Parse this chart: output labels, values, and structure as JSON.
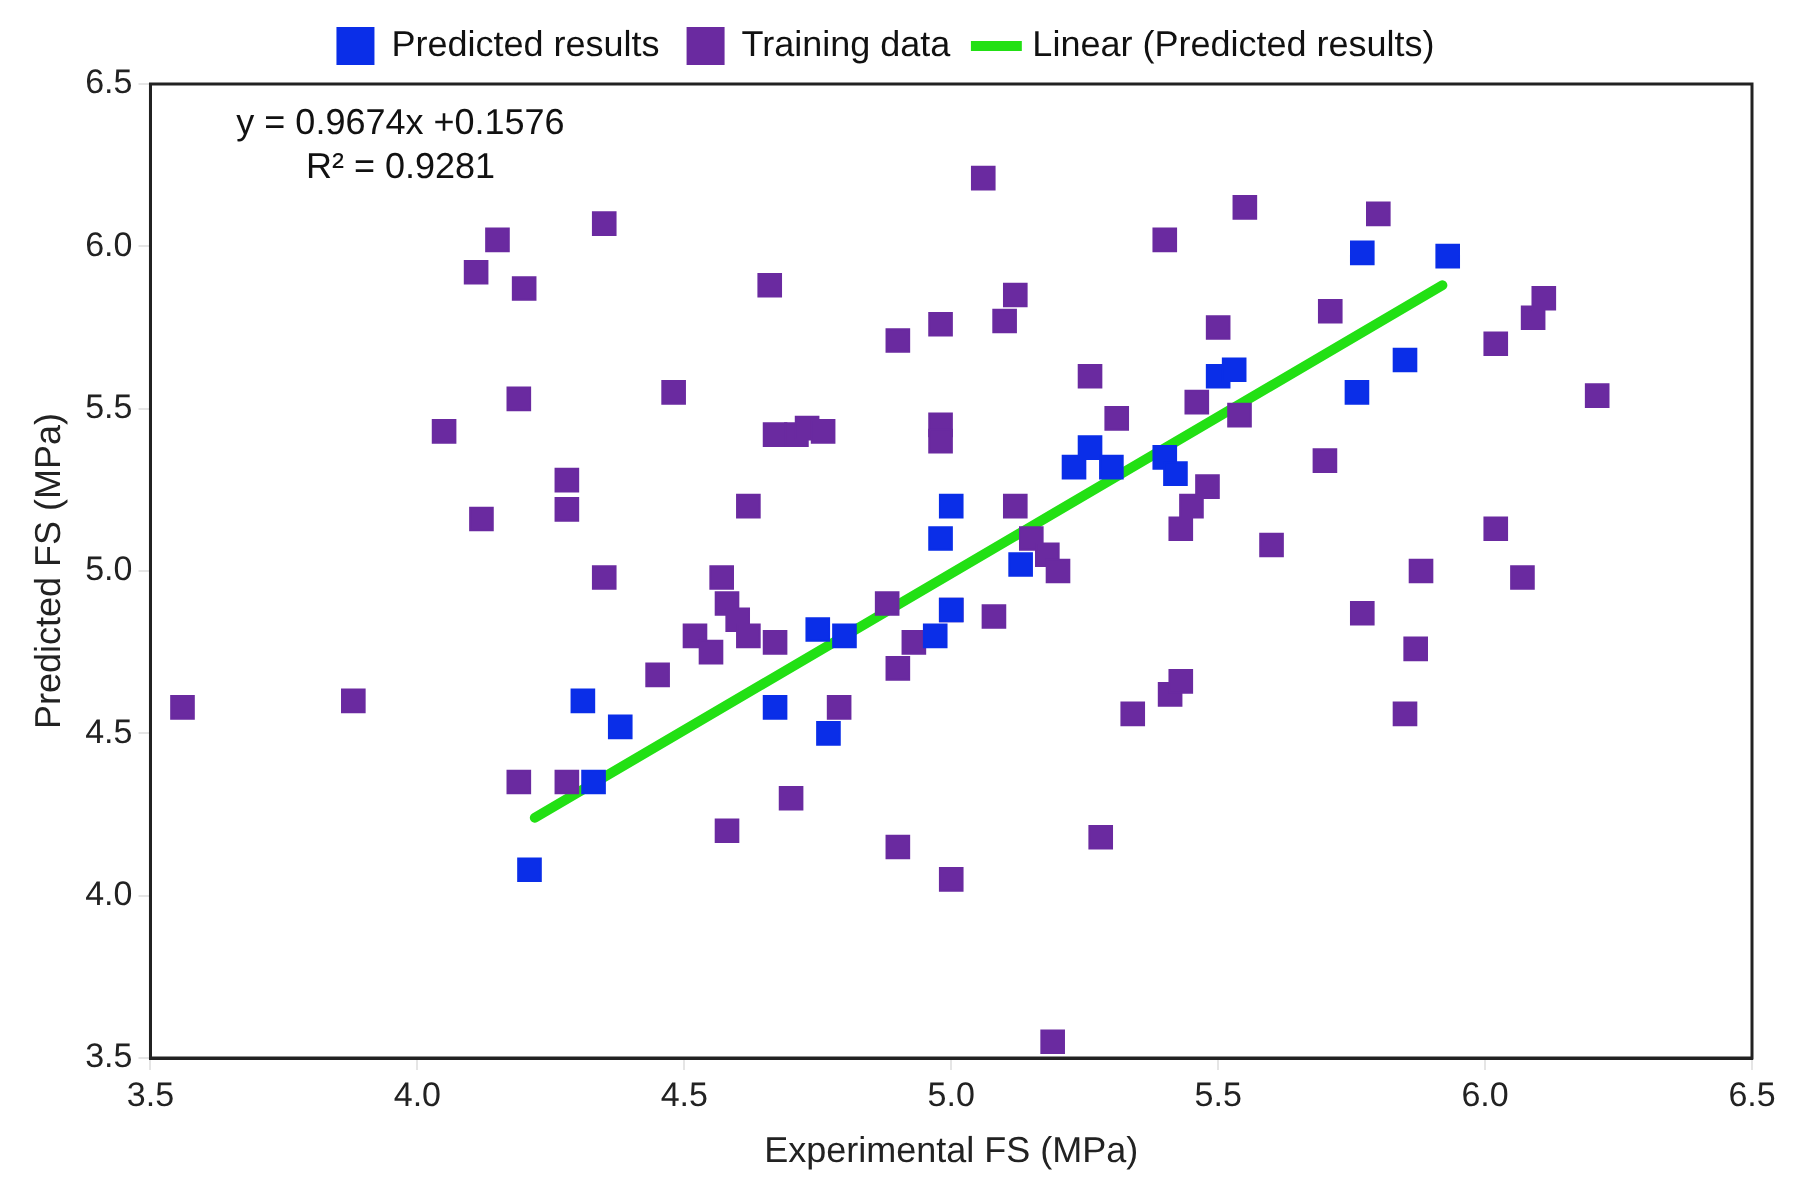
{
  "chart_data": {
    "type": "scatter",
    "xlabel": "Experimental FS (MPa)",
    "ylabel": "Predicted FS (MPa)",
    "xlim": [
      3.5,
      6.5
    ],
    "ylim": [
      3.5,
      6.5
    ],
    "xticks": [
      {
        "value": 3.5,
        "label": "3.5"
      },
      {
        "value": 4,
        "label": "4.0"
      },
      {
        "value": 4.5,
        "label": "4.5"
      },
      {
        "value": 5,
        "label": "5.0"
      },
      {
        "value": 5.5,
        "label": "5.5"
      },
      {
        "value": 6,
        "label": "6.0"
      },
      {
        "value": 6.5,
        "label": "6.5"
      }
    ],
    "yticks": [
      {
        "value": 3.5,
        "label": "3.5"
      },
      {
        "value": 4,
        "label": "4.0"
      },
      {
        "value": 4.5,
        "label": "4.5"
      },
      {
        "value": 5,
        "label": "5.0"
      },
      {
        "value": 5.5,
        "label": "5.5"
      },
      {
        "value": 6,
        "label": "6.0"
      },
      {
        "value": 6.5,
        "label": "6.5"
      }
    ],
    "grid": false,
    "legend": "top",
    "annotations": [
      "y = 0.9674x +0.1576",
      "R² = 0.9281"
    ],
    "series": [
      {
        "name": "Predicted results",
        "marker": "square",
        "color": "#0a2ee8",
        "x": [
          4.21,
          4.31,
          4.33,
          4.38,
          4.67,
          4.75,
          4.77,
          4.8,
          4.98,
          5.0,
          5.0,
          4.97,
          5.13,
          5.23,
          5.26,
          5.3,
          5.4,
          5.5,
          5.53,
          5.42,
          5.76,
          5.77,
          5.85,
          5.93
        ],
        "values": [
          4.08,
          4.6,
          4.35,
          4.52,
          4.58,
          4.82,
          4.5,
          4.8,
          5.1,
          5.2,
          4.88,
          4.8,
          5.02,
          5.32,
          5.38,
          5.32,
          5.35,
          5.6,
          5.62,
          5.3,
          5.55,
          5.98,
          5.65,
          5.97
        ]
      },
      {
        "name": "Training data",
        "marker": "square",
        "color": "#6a2aa0",
        "x": [
          3.56,
          3.88,
          4.05,
          4.11,
          4.12,
          4.15,
          4.19,
          4.2,
          4.19,
          4.28,
          4.28,
          4.35,
          4.35,
          4.28,
          4.45,
          4.48,
          4.52,
          4.55,
          4.57,
          4.58,
          4.58,
          4.6,
          4.62,
          4.62,
          4.66,
          4.67,
          4.71,
          4.73,
          4.76,
          4.7,
          4.67,
          4.79,
          4.88,
          4.9,
          4.9,
          4.9,
          4.93,
          4.98,
          4.98,
          4.98,
          5.0,
          5.0,
          5.06,
          5.08,
          5.1,
          5.12,
          5.12,
          5.15,
          5.18,
          5.2,
          5.19,
          5.26,
          5.28,
          5.31,
          5.34,
          5.4,
          5.41,
          5.43,
          5.43,
          5.45,
          5.46,
          5.48,
          5.5,
          5.55,
          5.54,
          5.6,
          5.7,
          5.71,
          5.77,
          5.8,
          5.85,
          5.87,
          5.88,
          6.02,
          6.02,
          6.07,
          6.09,
          6.11,
          6.21
        ],
        "values": [
          4.58,
          4.6,
          5.43,
          5.92,
          5.16,
          6.02,
          5.53,
          5.87,
          4.35,
          5.28,
          5.19,
          6.07,
          4.98,
          4.35,
          4.68,
          5.55,
          4.8,
          4.75,
          4.98,
          4.9,
          4.2,
          4.85,
          5.2,
          4.8,
          5.88,
          5.42,
          5.42,
          5.44,
          5.43,
          4.3,
          4.78,
          4.58,
          4.9,
          5.71,
          4.15,
          4.7,
          4.78,
          5.76,
          5.45,
          5.4,
          4.88,
          4.05,
          6.21,
          4.86,
          5.77,
          5.85,
          5.2,
          5.1,
          5.05,
          5.0,
          3.55,
          5.6,
          4.18,
          5.47,
          4.56,
          6.02,
          4.62,
          4.66,
          5.13,
          5.2,
          5.52,
          5.26,
          5.75,
          6.12,
          5.48,
          5.08,
          5.34,
          5.8,
          4.87,
          6.1,
          4.56,
          4.76,
          5.0,
          5.7,
          5.13,
          4.98,
          5.78,
          5.84,
          5.54
        ]
      },
      {
        "name": "Linear (Predicted results)",
        "type": "line",
        "marker": "none",
        "color": "#22e014",
        "x": [
          4.22,
          5.92
        ],
        "values": [
          4.24,
          5.88
        ]
      }
    ]
  }
}
